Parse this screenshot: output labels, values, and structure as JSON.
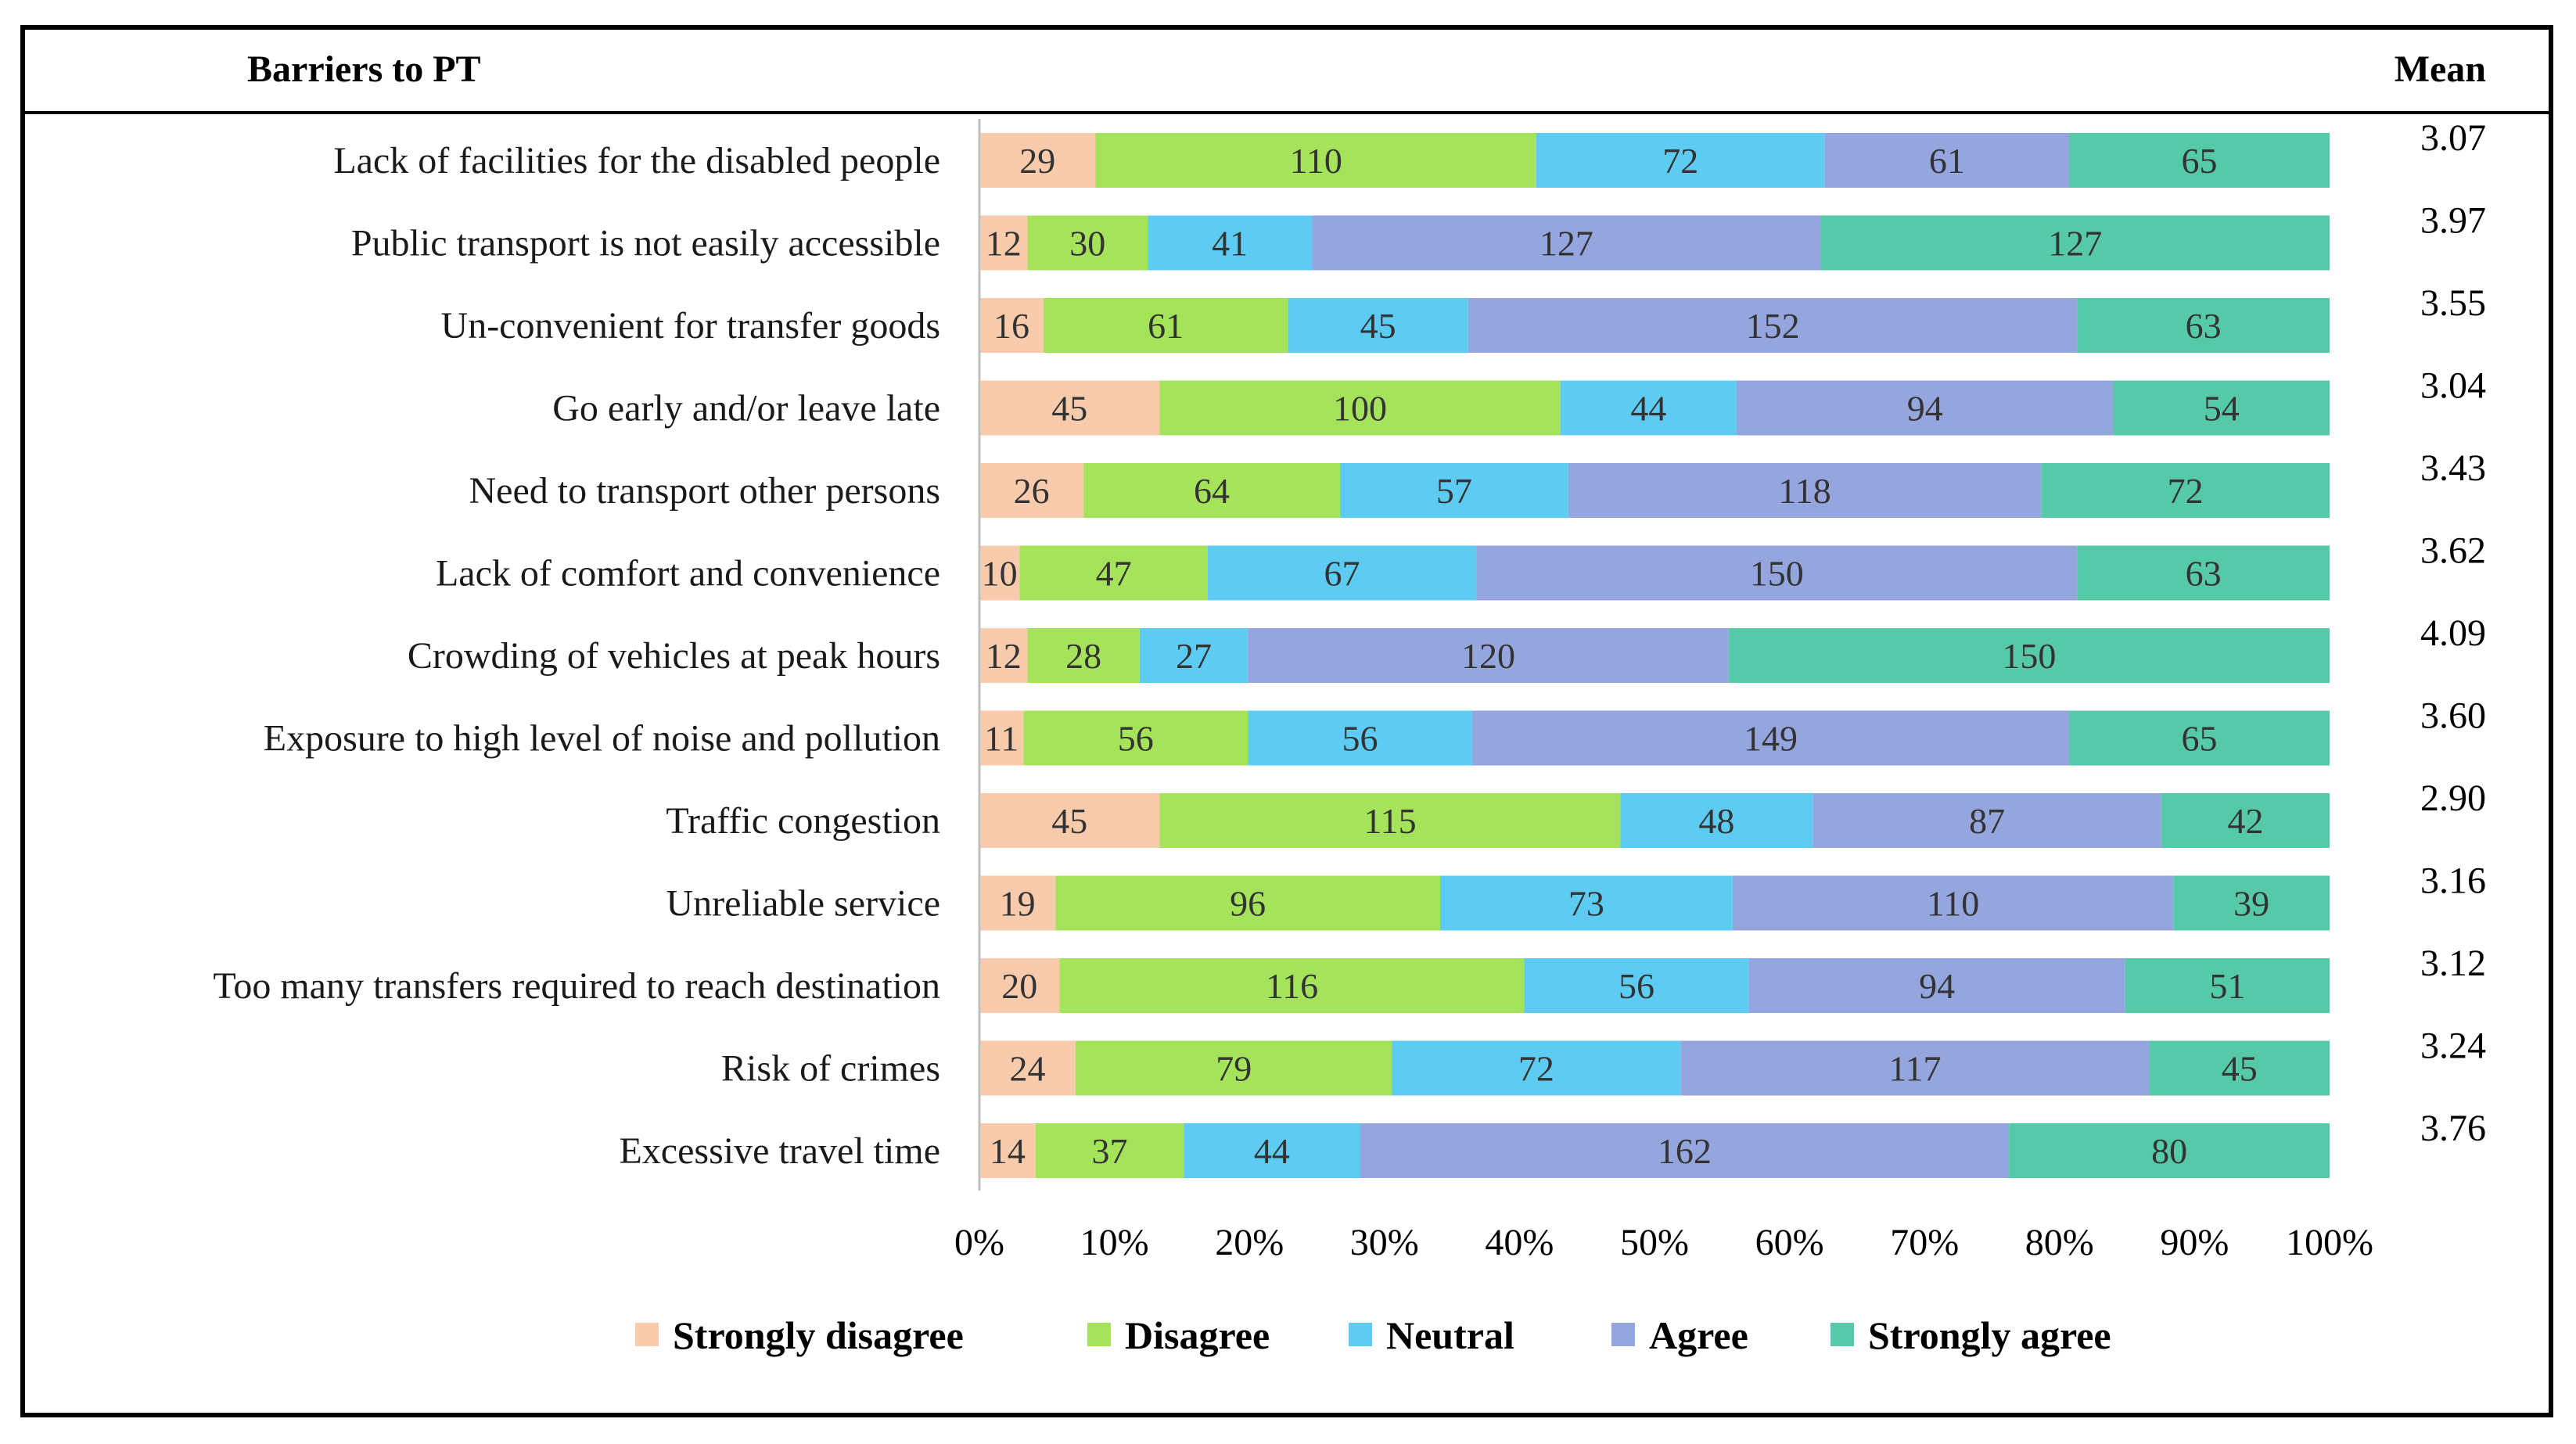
{
  "colors": {
    "strongly_disagree": "#F8CBAD",
    "disagree": "#A5E35A",
    "neutral": "#5ECBF2",
    "agree": "#95A5DE",
    "strongly_agree": "#55C9A8"
  },
  "chart_data": {
    "type": "bar",
    "orientation": "horizontal",
    "stacked": "percent",
    "header": {
      "category_column": "Barriers to PT",
      "mean_column": "Mean"
    },
    "categories": [
      "Lack of facilities for the disabled people",
      "Public transport is not easily accessible",
      "Un-convenient for transfer goods",
      "Go early and/or leave late",
      "Need to transport other persons",
      "Lack of comfort and convenience",
      "Crowding of vehicles at peak hours",
      "Exposure to high level of noise and pollution",
      "Traffic congestion",
      "Unreliable service",
      "Too many transfers required to reach destination",
      "Risk of crimes",
      "Excessive travel time"
    ],
    "series": [
      {
        "name": "Strongly disagree",
        "color_key": "strongly_disagree",
        "values": [
          29,
          12,
          16,
          45,
          26,
          10,
          12,
          11,
          45,
          19,
          20,
          24,
          14
        ]
      },
      {
        "name": "Disagree",
        "color_key": "disagree",
        "values": [
          110,
          30,
          61,
          100,
          64,
          47,
          28,
          56,
          115,
          96,
          116,
          79,
          37
        ]
      },
      {
        "name": "Neutral",
        "color_key": "neutral",
        "values": [
          72,
          41,
          45,
          44,
          57,
          67,
          27,
          56,
          48,
          73,
          56,
          72,
          44
        ]
      },
      {
        "name": "Agree",
        "color_key": "agree",
        "values": [
          61,
          127,
          152,
          94,
          118,
          150,
          120,
          149,
          87,
          110,
          94,
          117,
          162
        ]
      },
      {
        "name": "Strongly agree",
        "color_key": "strongly_agree",
        "values": [
          65,
          127,
          63,
          54,
          72,
          63,
          150,
          65,
          42,
          39,
          51,
          45,
          80
        ]
      }
    ],
    "means": [
      "3.07",
      "3.97",
      "3.55",
      "3.04",
      "3.43",
      "3.62",
      "4.09",
      "3.60",
      "2.90",
      "3.16",
      "3.12",
      "3.24",
      "3.76"
    ],
    "x_ticks": [
      "0%",
      "10%",
      "20%",
      "30%",
      "40%",
      "50%",
      "60%",
      "70%",
      "80%",
      "90%",
      "100%"
    ],
    "xlim": [
      0,
      100
    ],
    "legend_position": "bottom"
  }
}
